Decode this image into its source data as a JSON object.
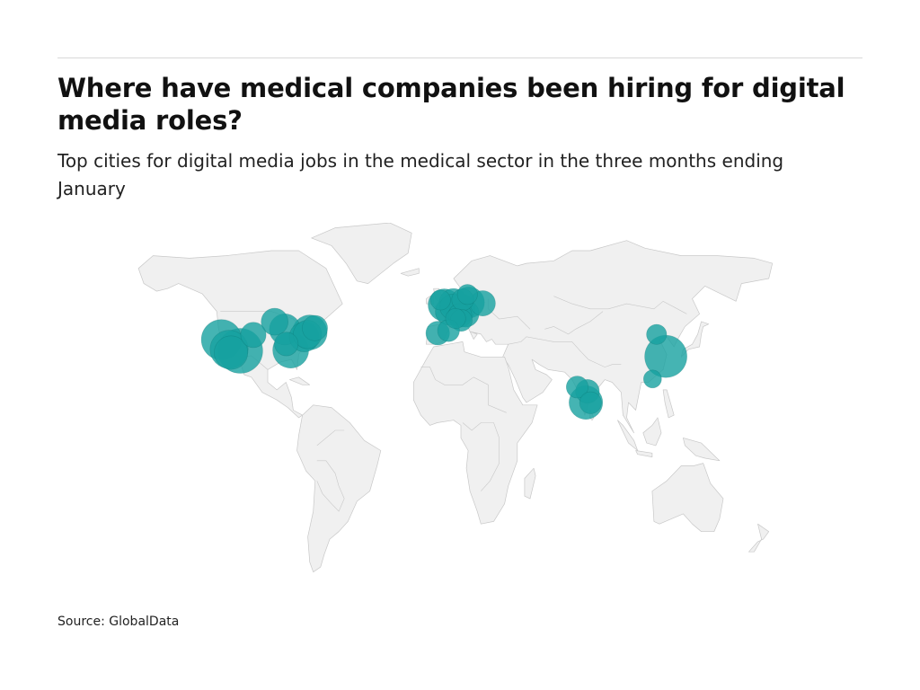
{
  "header": {
    "title": "Where have medical companies been hiring for digital media roles?",
    "subtitle": "Top cities for digital media jobs in the medical sector in the three months ending January"
  },
  "footer": {
    "source": "Source: GlobalData"
  },
  "map": {
    "land_color": "#f0f0f0",
    "border_color": "#c8c8c8",
    "bubble_color": "#17a1a0",
    "bubble_opacity": 0.8
  },
  "chart_data": {
    "type": "bubble-map",
    "title": "Where have medical companies been hiring for digital media roles?",
    "subtitle": "Top cities for digital media jobs in the medical sector in the three months ending January",
    "source": "Source: GlobalData",
    "units": "relative",
    "points": [
      {
        "lat": 37.8,
        "lon": -122.4,
        "value": 20
      },
      {
        "lat": 34.0,
        "lon": -118.2,
        "value": 18
      },
      {
        "lat": 32.7,
        "lon": -117.2,
        "value": 14
      },
      {
        "lat": 33.4,
        "lon": -112.1,
        "value": 25
      },
      {
        "lat": 39.7,
        "lon": -104.9,
        "value": 8
      },
      {
        "lat": 41.9,
        "lon": -87.6,
        "value": 12
      },
      {
        "lat": 44.9,
        "lon": -93.2,
        "value": 9
      },
      {
        "lat": 40.7,
        "lon": -74.0,
        "value": 15
      },
      {
        "lat": 42.4,
        "lon": -71.1,
        "value": 8
      },
      {
        "lat": 39.9,
        "lon": -75.2,
        "value": 10
      },
      {
        "lat": 38.9,
        "lon": -77.0,
        "value": 11
      },
      {
        "lat": 33.7,
        "lon": -84.4,
        "value": 16
      },
      {
        "lat": 36.1,
        "lon": -86.8,
        "value": 7
      },
      {
        "lat": 51.5,
        "lon": -0.1,
        "value": 13
      },
      {
        "lat": 53.5,
        "lon": -2.2,
        "value": 5
      },
      {
        "lat": 52.4,
        "lon": 4.9,
        "value": 10
      },
      {
        "lat": 50.8,
        "lon": 4.4,
        "value": 8
      },
      {
        "lat": 48.9,
        "lon": 2.4,
        "value": 9
      },
      {
        "lat": 52.5,
        "lon": 13.4,
        "value": 12
      },
      {
        "lat": 53.6,
        "lon": 10.0,
        "value": 6
      },
      {
        "lat": 50.1,
        "lon": 8.7,
        "value": 11
      },
      {
        "lat": 48.1,
        "lon": 11.6,
        "value": 9
      },
      {
        "lat": 47.4,
        "lon": 8.5,
        "value": 7
      },
      {
        "lat": 46.2,
        "lon": 6.1,
        "value": 5
      },
      {
        "lat": 45.5,
        "lon": 9.2,
        "value": 6
      },
      {
        "lat": 41.4,
        "lon": 2.2,
        "value": 6
      },
      {
        "lat": 40.4,
        "lon": -3.7,
        "value": 7
      },
      {
        "lat": 55.7,
        "lon": 12.6,
        "value": 5
      },
      {
        "lat": 52.2,
        "lon": 21.0,
        "value": 8
      },
      {
        "lat": 19.1,
        "lon": 72.9,
        "value": 6
      },
      {
        "lat": 17.4,
        "lon": 78.5,
        "value": 7
      },
      {
        "lat": 13.0,
        "lon": 77.6,
        "value": 14
      },
      {
        "lat": 12.9,
        "lon": 80.2,
        "value": 6
      },
      {
        "lat": 31.2,
        "lon": 121.5,
        "value": 22
      },
      {
        "lat": 39.9,
        "lon": 116.4,
        "value": 5
      },
      {
        "lat": 22.3,
        "lon": 114.2,
        "value": 4
      }
    ]
  }
}
